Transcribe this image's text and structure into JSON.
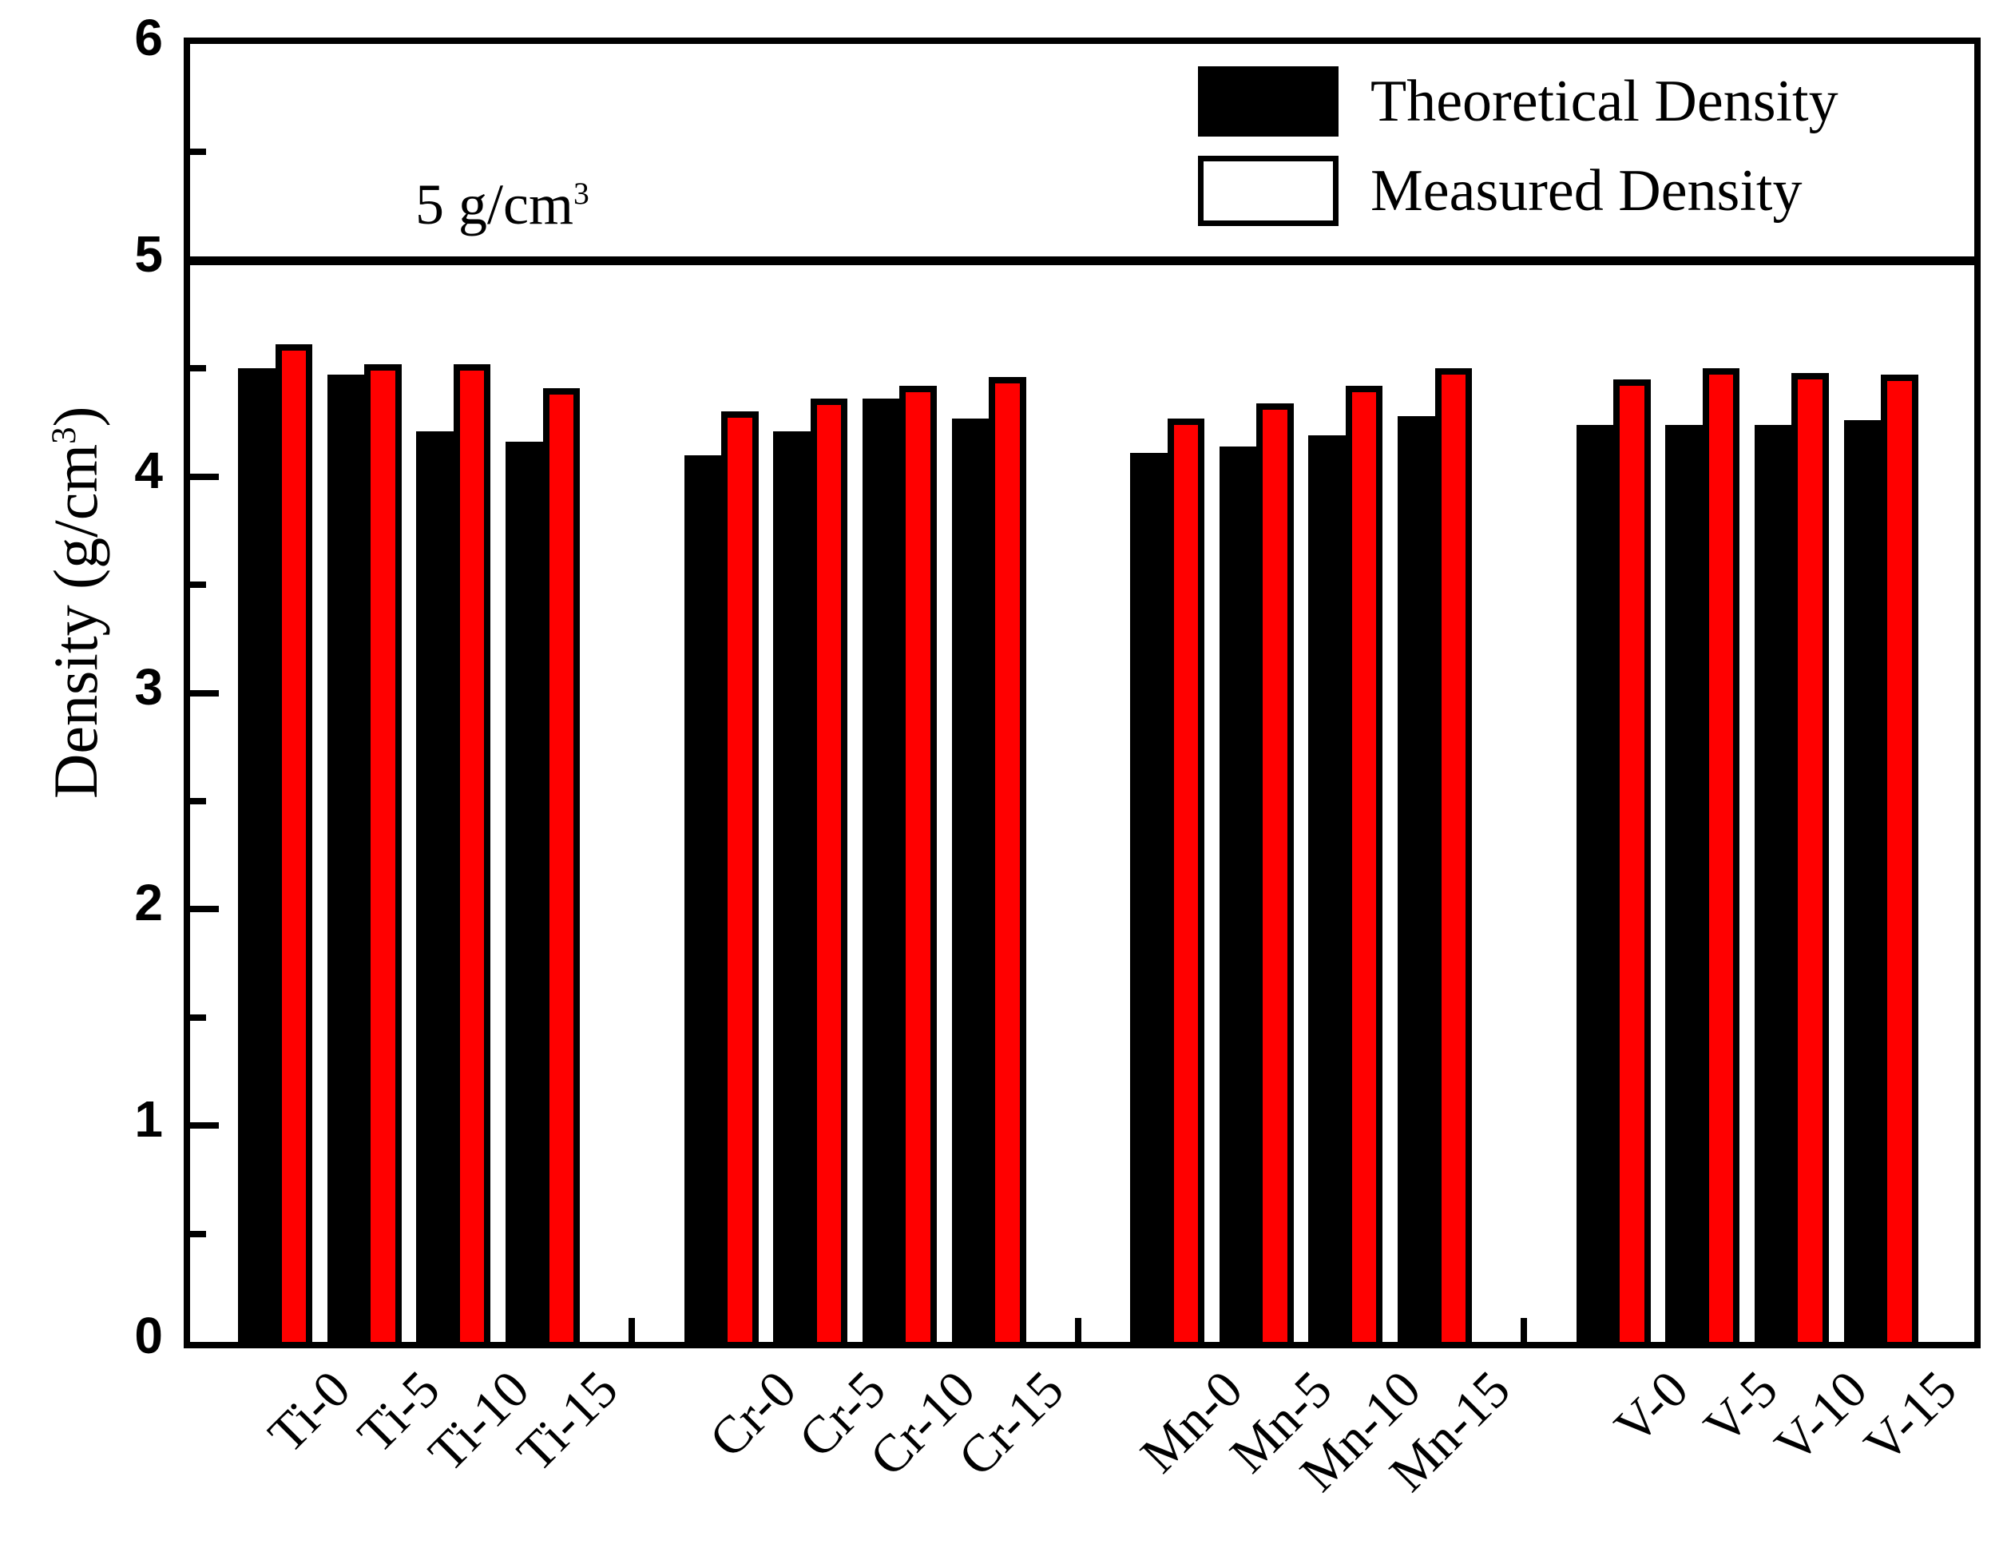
{
  "chart_data": {
    "type": "bar",
    "title": "",
    "categories": [
      "Ti-0",
      "Ti-5",
      "Ti-10",
      "Ti-15",
      "Cr-0",
      "Cr-5",
      "Cr-10",
      "Cr-15",
      "Mn-0",
      "Mn-5",
      "Mn-10",
      "Mn-15",
      "V-0",
      "V-5",
      "V-10",
      "V-15"
    ],
    "group_labels": [
      "Ti",
      "Cr",
      "Mn",
      "V"
    ],
    "group_size": 4,
    "series": [
      {
        "name": "Theoretical Density",
        "color": "#000000",
        "values": [
          4.5,
          4.47,
          4.21,
          4.16,
          4.1,
          4.21,
          4.36,
          4.27,
          4.11,
          4.14,
          4.19,
          4.28,
          4.24,
          4.24,
          4.24,
          4.26
        ]
      },
      {
        "name": "Measured Density",
        "color": "#ff0000",
        "values": [
          4.61,
          4.52,
          4.52,
          4.41,
          4.3,
          4.36,
          4.42,
          4.46,
          4.27,
          4.34,
          4.42,
          4.5,
          4.45,
          4.5,
          4.48,
          4.47
        ]
      }
    ],
    "xlabel": "",
    "ylabel": {
      "pre": "Density (g/cm",
      "sup": "3",
      "post": ")"
    },
    "ylim": [
      0,
      6
    ],
    "y_major_ticks": [
      0,
      1,
      2,
      3,
      4,
      5,
      6
    ],
    "y_minor_step": 0.5,
    "reference_line": {
      "value": 5,
      "annotation": {
        "pre": "5 g/cm",
        "sup": "3"
      }
    },
    "legend_position": "top-right",
    "grid": false,
    "axis_color": "#000000",
    "background_color": "#ffffff"
  }
}
